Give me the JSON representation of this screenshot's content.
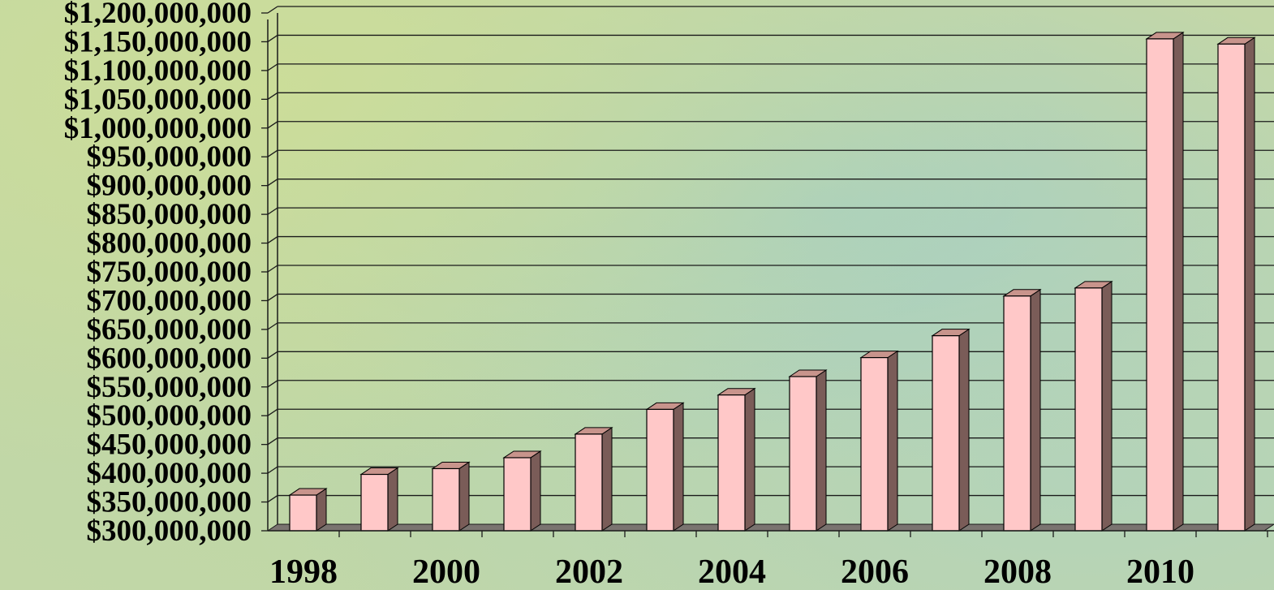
{
  "chart_data": {
    "type": "bar",
    "style": "3d",
    "categories": [
      "1998",
      "1999",
      "2000",
      "2001",
      "2002",
      "2003",
      "2004",
      "2005",
      "2006",
      "2007",
      "2008",
      "2009",
      "2010",
      "2011"
    ],
    "x_tick_labels": [
      "1998",
      "2000",
      "2002",
      "2004",
      "2006",
      "2008",
      "2010"
    ],
    "values": [
      362000000,
      398000000,
      408000000,
      427000000,
      468000000,
      511000000,
      536000000,
      568000000,
      601000000,
      639000000,
      708000000,
      722000000,
      1155000000,
      1146000000
    ],
    "title": "",
    "xlabel": "",
    "ylabel": "",
    "ylim": [
      300000000,
      1200000000
    ],
    "y_tick_step": 50000000,
    "y_tick_labels": [
      "$300,000,000",
      "$350,000,000",
      "$400,000,000",
      "$450,000,000",
      "$500,000,000",
      "$550,000,000",
      "$600,000,000",
      "$650,000,000",
      "$700,000,000",
      "$750,000,000",
      "$800,000,000",
      "$850,000,000",
      "$900,000,000",
      "$950,000,000",
      "$1,000,000,000",
      "$1,050,000,000",
      "$1,100,000,000",
      "$1,150,000,000",
      "$1,200,000,000"
    ],
    "grid": true,
    "legend": "none",
    "colors": {
      "bar_front": "#ffc8c8",
      "bar_top": "#c8948c",
      "bar_side": "#7a5c58",
      "grid": "#1a1a1a",
      "floor": "#7a7470"
    }
  }
}
